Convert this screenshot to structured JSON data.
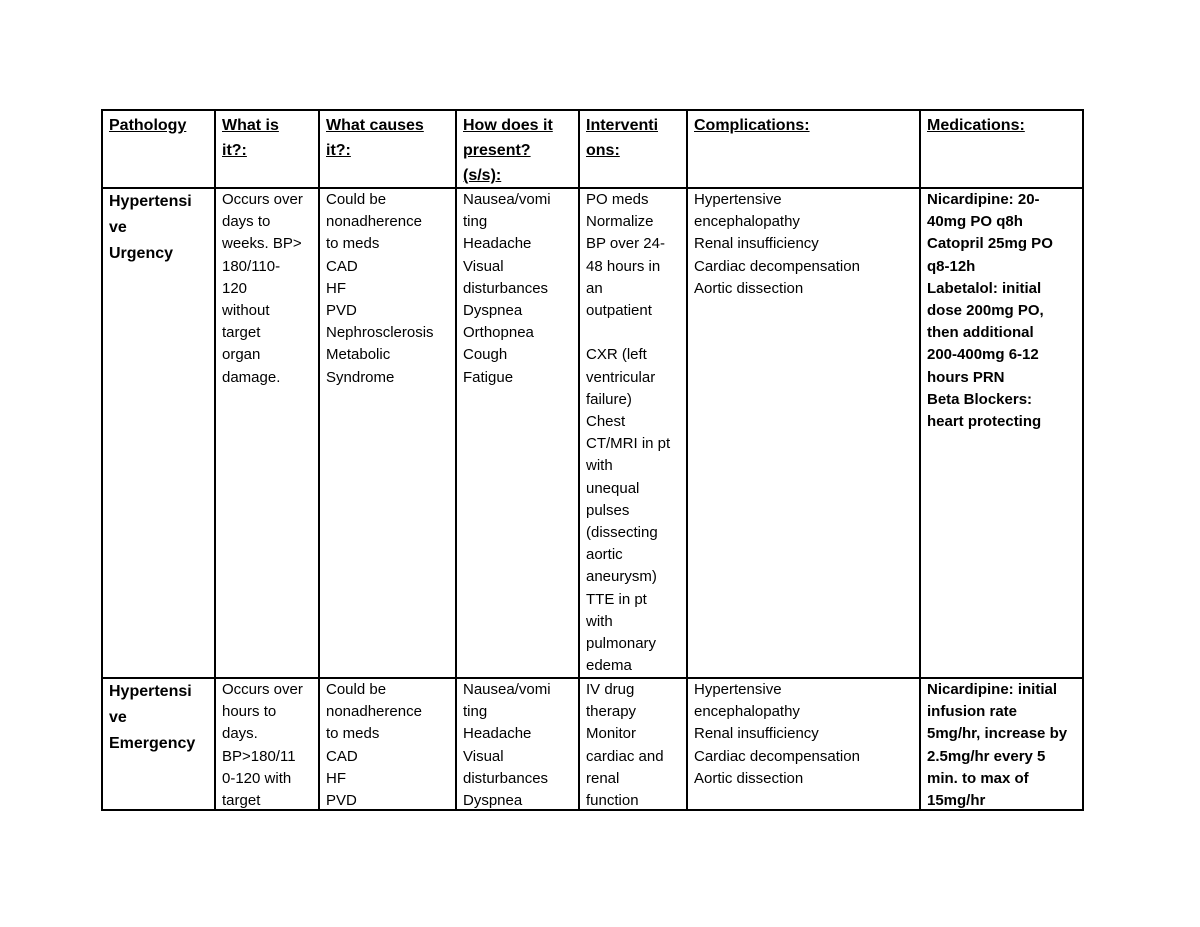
{
  "table": {
    "header": [
      [
        "Pathology"
      ],
      [
        "What is",
        "it?:"
      ],
      [
        "What causes",
        "it?:"
      ],
      [
        "How does it",
        "present?",
        "(s/s):"
      ],
      [
        "Interventi",
        "ons:"
      ],
      [
        "Complications:"
      ],
      [
        "Medications:"
      ]
    ],
    "rows": [
      [
        [
          "Hypertensi",
          "ve",
          "Urgency"
        ],
        [
          "Occurs over",
          "days to",
          "weeks. BP>",
          "180/110-",
          "120",
          "without",
          "target",
          "organ",
          "damage."
        ],
        [
          "Could be",
          "nonadherence",
          "to meds",
          "CAD",
          "HF",
          "PVD",
          "Nephrosclerosis",
          "Metabolic",
          "Syndrome"
        ],
        [
          "Nausea/vomi",
          "ting",
          "Headache",
          "Visual",
          "disturbances",
          "Dyspnea",
          "Orthopnea",
          "Cough",
          "Fatigue"
        ],
        [
          "PO meds",
          "Normalize",
          "BP over 24-",
          "48 hours in",
          "an",
          "outpatient",
          "",
          "CXR (left",
          "ventricular",
          "failure)",
          "Chest",
          "CT/MRI in pt",
          "with",
          "unequal",
          "pulses",
          "(dissecting",
          "aortic",
          "aneurysm)",
          "TTE in pt",
          "with",
          "pulmonary",
          "edema"
        ],
        [
          "Hypertensive",
          "encephalopathy",
          "Renal insufficiency",
          "Cardiac decompensation",
          "Aortic dissection"
        ],
        [
          "Nicardipine: 20-",
          "40mg PO q8h",
          "Catopril 25mg PO",
          "q8-12h",
          "Labetalol: initial",
          "dose 200mg PO,",
          "then additional",
          "200-400mg 6-12",
          "hours PRN",
          "Beta Blockers:",
          "heart protecting"
        ]
      ],
      [
        [
          "Hypertensi",
          "ve",
          "Emergency"
        ],
        [
          "Occurs over",
          "hours to",
          "days.",
          "BP>180/11",
          "0-120 with",
          "target"
        ],
        [
          "Could be",
          "nonadherence",
          "to meds",
          "CAD",
          "HF",
          "PVD"
        ],
        [
          "Nausea/vomi",
          "ting",
          "Headache",
          "Visual",
          "disturbances",
          "Dyspnea"
        ],
        [
          "IV drug",
          "therapy",
          "Monitor",
          "cardiac and",
          "renal",
          "function"
        ],
        [
          "Hypertensive",
          "encephalopathy",
          "Renal insufficiency",
          "Cardiac decompensation",
          "Aortic dissection"
        ],
        [
          "Nicardipine: initial",
          "infusion rate",
          "5mg/hr, increase by",
          "2.5mg/hr every 5",
          "min. to max of",
          "15mg/hr"
        ]
      ]
    ]
  }
}
